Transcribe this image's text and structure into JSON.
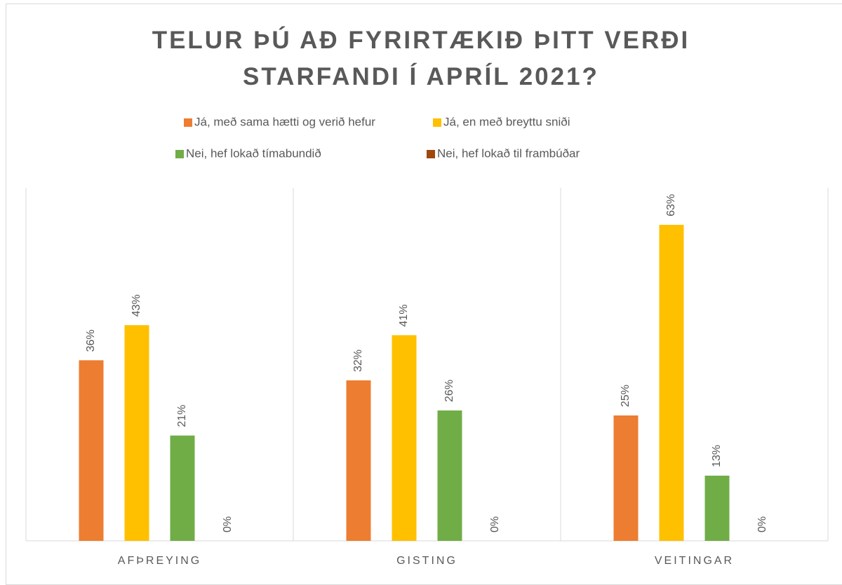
{
  "chart_data": {
    "type": "bar",
    "title": "TELUR ÞÚ AÐ FYRIRTÆKIÐ ÞITT VERÐI STARFANDI Í APRÍL 2021?",
    "categories": [
      "AFÞREYING",
      "GISTING",
      "VEITINGAR"
    ],
    "series": [
      {
        "name": "Já, með sama hætti og verið hefur",
        "color": "#ED7D31",
        "values": [
          36,
          32,
          25
        ],
        "value_labels": [
          "36%",
          "32%",
          "25%"
        ]
      },
      {
        "name": "Já, en með breyttu sniði",
        "color": "#FFC000",
        "values": [
          43,
          41,
          63
        ],
        "value_labels": [
          "43%",
          "41%",
          "63%"
        ]
      },
      {
        "name": "Nei, hef lokað tímabundið",
        "color": "#70AD47",
        "values": [
          21,
          26,
          13
        ],
        "value_labels": [
          "21%",
          "26%",
          "13%"
        ]
      },
      {
        "name": "Nei, hef lokað til frambúðar",
        "color": "#9E480E",
        "values": [
          0,
          0,
          0
        ],
        "value_labels": [
          "0%",
          "0%",
          "0%"
        ]
      }
    ]
  }
}
